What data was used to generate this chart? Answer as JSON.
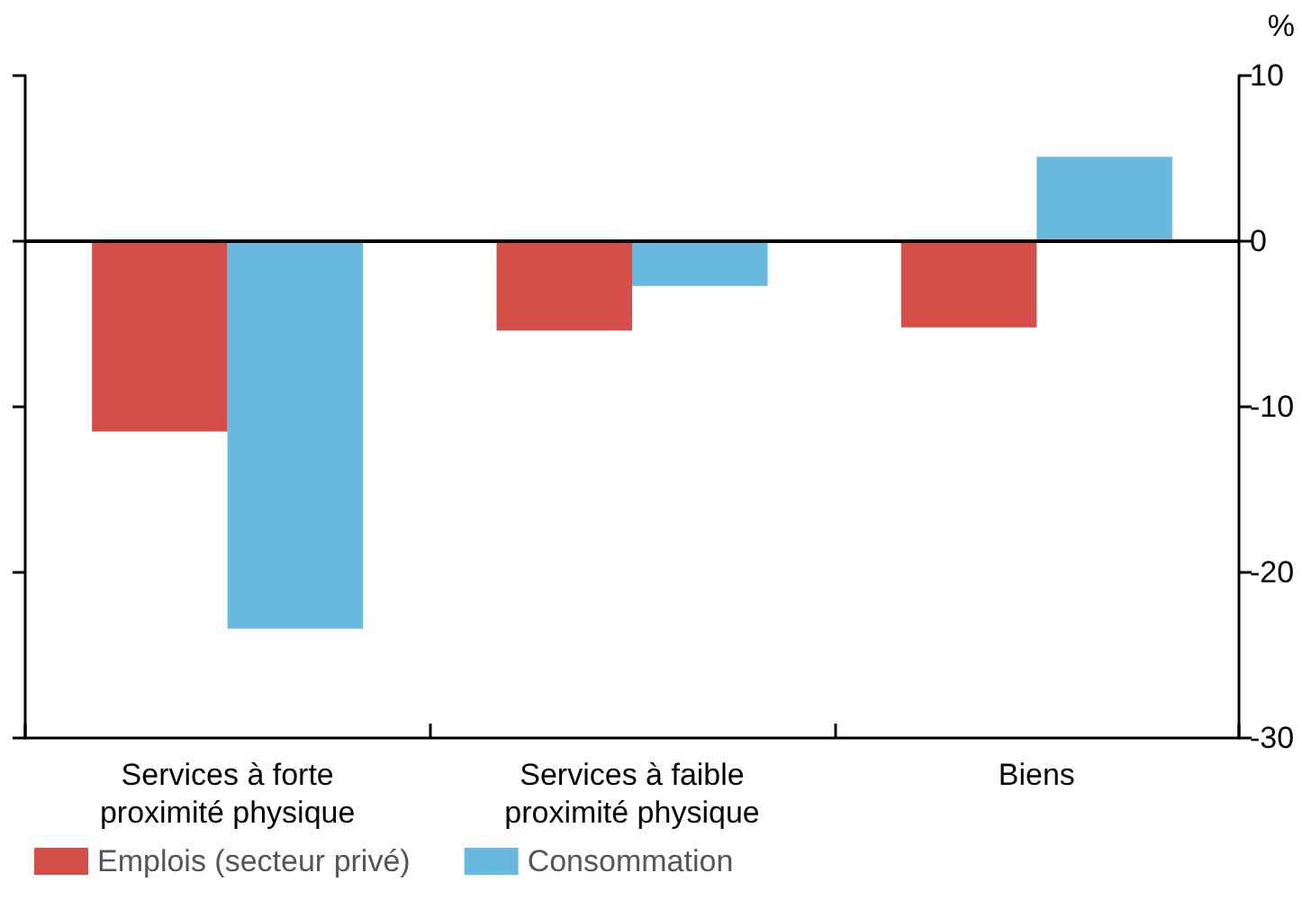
{
  "chart_data": {
    "type": "bar",
    "ylabel": "%",
    "categories": [
      "Services à forte\nproximité physique",
      "Services à faible\nproximité physique",
      "Biens"
    ],
    "series": [
      {
        "name": "Emplois (secteur privé)",
        "color": "#d44f4a",
        "values": [
          -11.5,
          -5.4,
          -5.2
        ]
      },
      {
        "name": "Consommation",
        "color": "#69b9df",
        "values": [
          -23.4,
          -2.7,
          5.1
        ]
      }
    ],
    "ylim": [
      -30,
      10
    ],
    "yticks": [
      -30,
      -20,
      -10,
      0,
      10
    ],
    "grid": false,
    "legend": "bottom left",
    "ref_lines": [
      {
        "axis": "y",
        "value": 0
      }
    ]
  }
}
